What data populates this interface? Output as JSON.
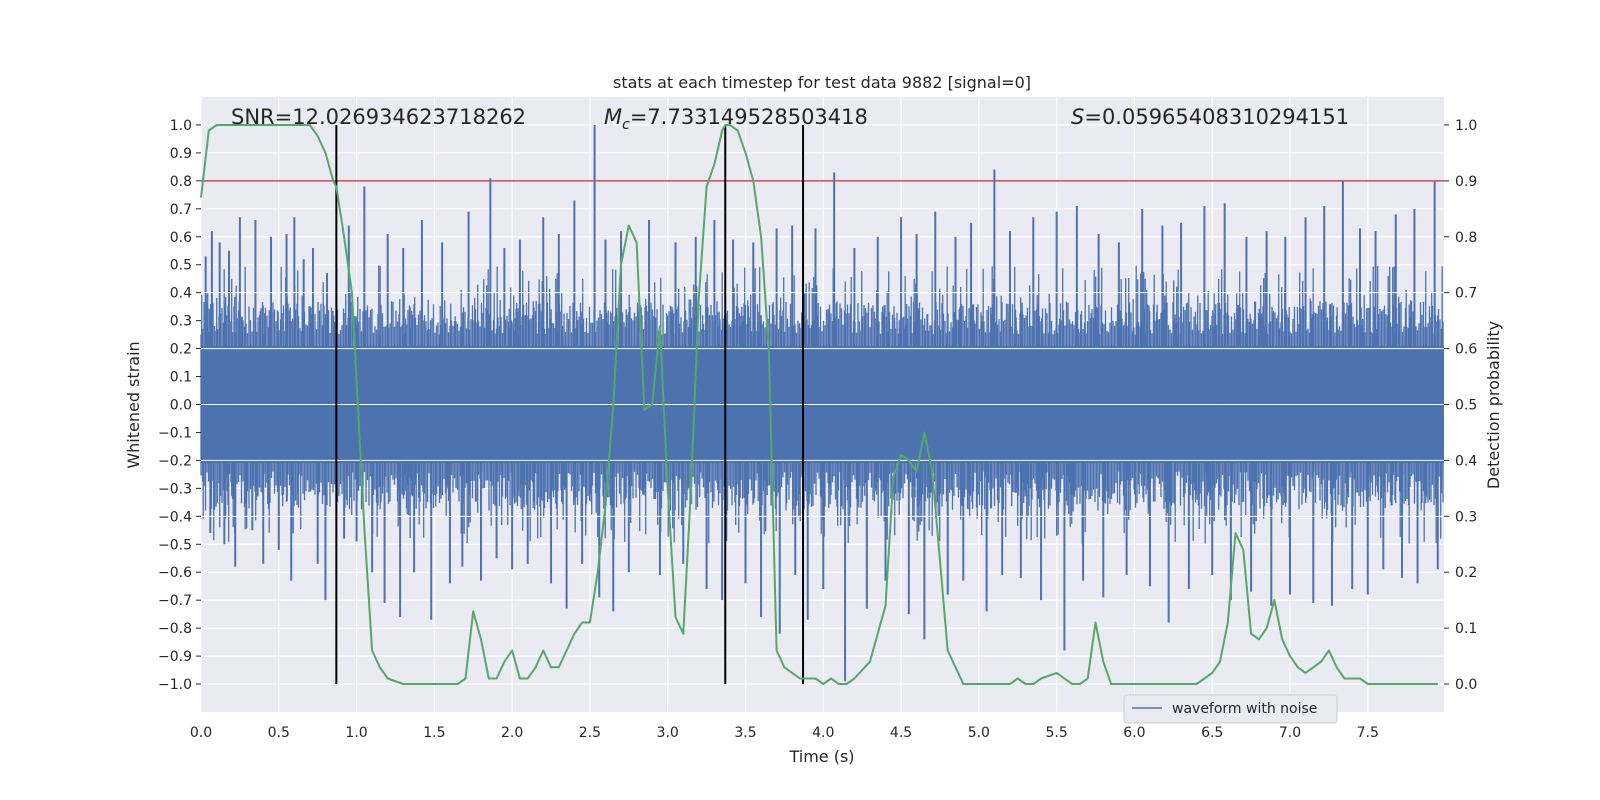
{
  "chart_data": {
    "type": "line",
    "title": "stats at each timestep for test data 9882 [signal=0]",
    "xlabel": "Time (s)",
    "ylabel_left": "Whitened strain",
    "ylabel_right": "Detection probability",
    "xlim": [
      0.0,
      7.99
    ],
    "ylim_left": [
      -1.1,
      1.1
    ],
    "ylim_right": [
      -0.05,
      1.05
    ],
    "grid": true,
    "x_ticks": [
      "0.0",
      "0.5",
      "1.0",
      "1.5",
      "2.0",
      "2.5",
      "3.0",
      "3.5",
      "4.0",
      "4.5",
      "5.0",
      "5.5",
      "6.0",
      "6.5",
      "7.0",
      "7.5"
    ],
    "y_left_ticks": [
      "1.0",
      "0.9",
      "0.8",
      "0.7",
      "0.6",
      "0.5",
      "0.4",
      "0.3",
      "0.2",
      "0.1",
      "0.0",
      "−0.1",
      "−0.2",
      "−0.3",
      "−0.4",
      "−0.5",
      "−0.6",
      "−0.7",
      "−0.8",
      "−0.9",
      "−1.0"
    ],
    "y_right_ticks": [
      "1.0",
      "0.9",
      "0.8",
      "0.7",
      "0.6",
      "0.5",
      "0.4",
      "0.3",
      "0.2",
      "0.1",
      "0.0"
    ],
    "annotations": {
      "snr": "SNR=12.026934623718262",
      "mc_symbol": "M",
      "mc_sub": "c",
      "mc_value": "=7.733149528503418",
      "s_symbol": "S",
      "s_value": "=0.05965408310294151"
    },
    "threshold": {
      "value": 0.9,
      "color": "#c44e52"
    },
    "vertical_lines": [
      0.87,
      3.37,
      3.87
    ],
    "legend": {
      "label": "waveform with noise",
      "position": "lower-right"
    },
    "series": [
      {
        "name": "waveform with noise",
        "axis": "left",
        "color": "#4c72b0",
        "style": "noise-bars",
        "spikes": [
          {
            "x": 0.03,
            "y": 0.53
          },
          {
            "x": 0.07,
            "y": 0.62
          },
          {
            "x": 0.12,
            "y": 0.58
          },
          {
            "x": 0.18,
            "y": 0.55
          },
          {
            "x": 0.25,
            "y": 0.67
          },
          {
            "x": 0.35,
            "y": 0.66
          },
          {
            "x": 0.45,
            "y": 0.6
          },
          {
            "x": 0.55,
            "y": 0.61
          },
          {
            "x": 0.6,
            "y": 0.67
          },
          {
            "x": 0.66,
            "y": 0.52
          },
          {
            "x": 0.72,
            "y": 0.56
          },
          {
            "x": 0.81,
            "y": 0.47
          },
          {
            "x": 0.95,
            "y": 0.64
          },
          {
            "x": 1.05,
            "y": 0.78
          },
          {
            "x": 1.2,
            "y": 0.61
          },
          {
            "x": 1.3,
            "y": 0.56
          },
          {
            "x": 1.42,
            "y": 0.66
          },
          {
            "x": 1.55,
            "y": 0.58
          },
          {
            "x": 1.72,
            "y": 0.69
          },
          {
            "x": 1.86,
            "y": 0.81
          },
          {
            "x": 1.95,
            "y": 0.56
          },
          {
            "x": 2.05,
            "y": 0.59
          },
          {
            "x": 2.2,
            "y": 0.67
          },
          {
            "x": 2.3,
            "y": 0.61
          },
          {
            "x": 2.4,
            "y": 0.73
          },
          {
            "x": 2.53,
            "y": 1.0
          },
          {
            "x": 2.6,
            "y": 0.59
          },
          {
            "x": 2.7,
            "y": 0.62
          },
          {
            "x": 2.88,
            "y": 0.66
          },
          {
            "x": 3.05,
            "y": 0.58
          },
          {
            "x": 3.18,
            "y": 0.6
          },
          {
            "x": 3.3,
            "y": 0.66
          },
          {
            "x": 3.42,
            "y": 0.59
          },
          {
            "x": 3.55,
            "y": 0.58
          },
          {
            "x": 3.7,
            "y": 0.63
          },
          {
            "x": 3.8,
            "y": 0.64
          },
          {
            "x": 3.95,
            "y": 0.63
          },
          {
            "x": 4.07,
            "y": 0.83
          },
          {
            "x": 4.2,
            "y": 0.56
          },
          {
            "x": 4.35,
            "y": 0.6
          },
          {
            "x": 4.5,
            "y": 0.67
          },
          {
            "x": 4.6,
            "y": 0.61
          },
          {
            "x": 4.72,
            "y": 0.69
          },
          {
            "x": 4.85,
            "y": 0.6
          },
          {
            "x": 4.95,
            "y": 0.65
          },
          {
            "x": 5.1,
            "y": 0.84
          },
          {
            "x": 5.2,
            "y": 0.62
          },
          {
            "x": 5.35,
            "y": 0.67
          },
          {
            "x": 5.5,
            "y": 0.69
          },
          {
            "x": 5.63,
            "y": 0.71
          },
          {
            "x": 5.77,
            "y": 0.61
          },
          {
            "x": 5.9,
            "y": 0.58
          },
          {
            "x": 6.05,
            "y": 0.7
          },
          {
            "x": 6.18,
            "y": 0.64
          },
          {
            "x": 6.3,
            "y": 0.65
          },
          {
            "x": 6.45,
            "y": 0.71
          },
          {
            "x": 6.58,
            "y": 0.72
          },
          {
            "x": 6.72,
            "y": 0.6
          },
          {
            "x": 6.85,
            "y": 0.62
          },
          {
            "x": 6.97,
            "y": 0.6
          },
          {
            "x": 7.1,
            "y": 0.67
          },
          {
            "x": 7.22,
            "y": 0.71
          },
          {
            "x": 7.34,
            "y": 0.8
          },
          {
            "x": 7.45,
            "y": 0.63
          },
          {
            "x": 7.55,
            "y": 0.62
          },
          {
            "x": 7.68,
            "y": 0.68
          },
          {
            "x": 7.8,
            "y": 0.7
          },
          {
            "x": 7.93,
            "y": 0.8
          },
          {
            "x": 0.06,
            "y": -0.46
          },
          {
            "x": 0.15,
            "y": -0.5
          },
          {
            "x": 0.22,
            "y": -0.58
          },
          {
            "x": 0.33,
            "y": -0.45
          },
          {
            "x": 0.4,
            "y": -0.57
          },
          {
            "x": 0.5,
            "y": -0.52
          },
          {
            "x": 0.58,
            "y": -0.63
          },
          {
            "x": 0.75,
            "y": -0.57
          },
          {
            "x": 0.8,
            "y": -0.7
          },
          {
            "x": 0.92,
            "y": -0.48
          },
          {
            "x": 1.0,
            "y": -0.49
          },
          {
            "x": 1.1,
            "y": -0.6
          },
          {
            "x": 1.18,
            "y": -0.71
          },
          {
            "x": 1.28,
            "y": -0.76
          },
          {
            "x": 1.37,
            "y": -0.6
          },
          {
            "x": 1.48,
            "y": -0.77
          },
          {
            "x": 1.6,
            "y": -0.64
          },
          {
            "x": 1.68,
            "y": -0.58
          },
          {
            "x": 1.8,
            "y": -0.63
          },
          {
            "x": 1.9,
            "y": -0.55
          },
          {
            "x": 2.0,
            "y": -0.59
          },
          {
            "x": 2.1,
            "y": -0.57
          },
          {
            "x": 2.25,
            "y": -0.64
          },
          {
            "x": 2.35,
            "y": -0.73
          },
          {
            "x": 2.45,
            "y": -0.57
          },
          {
            "x": 2.56,
            "y": -0.69
          },
          {
            "x": 2.65,
            "y": -0.74
          },
          {
            "x": 2.75,
            "y": -0.6
          },
          {
            "x": 2.95,
            "y": -0.61
          },
          {
            "x": 3.1,
            "y": -0.57
          },
          {
            "x": 3.25,
            "y": -0.66
          },
          {
            "x": 3.35,
            "y": -0.7
          },
          {
            "x": 3.5,
            "y": -0.64
          },
          {
            "x": 3.6,
            "y": -0.76
          },
          {
            "x": 3.72,
            "y": -0.82
          },
          {
            "x": 3.82,
            "y": -0.61
          },
          {
            "x": 3.9,
            "y": -0.77
          },
          {
            "x": 4.0,
            "y": -0.66
          },
          {
            "x": 4.14,
            "y": -0.99
          },
          {
            "x": 4.28,
            "y": -0.73
          },
          {
            "x": 4.4,
            "y": -0.63
          },
          {
            "x": 4.55,
            "y": -0.75
          },
          {
            "x": 4.65,
            "y": -0.84
          },
          {
            "x": 4.8,
            "y": -0.68
          },
          {
            "x": 4.9,
            "y": -0.63
          },
          {
            "x": 5.05,
            "y": -0.74
          },
          {
            "x": 5.15,
            "y": -0.61
          },
          {
            "x": 5.27,
            "y": -0.62
          },
          {
            "x": 5.4,
            "y": -0.7
          },
          {
            "x": 5.55,
            "y": -0.88
          },
          {
            "x": 5.67,
            "y": -0.63
          },
          {
            "x": 5.8,
            "y": -0.69
          },
          {
            "x": 5.95,
            "y": -0.61
          },
          {
            "x": 6.1,
            "y": -0.65
          },
          {
            "x": 6.22,
            "y": -0.78
          },
          {
            "x": 6.35,
            "y": -0.66
          },
          {
            "x": 6.5,
            "y": -0.61
          },
          {
            "x": 6.62,
            "y": -0.7
          },
          {
            "x": 6.75,
            "y": -0.67
          },
          {
            "x": 6.88,
            "y": -0.72
          },
          {
            "x": 7.0,
            "y": -0.68
          },
          {
            "x": 7.15,
            "y": -0.71
          },
          {
            "x": 7.27,
            "y": -0.72
          },
          {
            "x": 7.4,
            "y": -0.66
          },
          {
            "x": 7.5,
            "y": -0.68
          },
          {
            "x": 7.6,
            "y": -0.59
          },
          {
            "x": 7.72,
            "y": -0.62
          },
          {
            "x": 7.82,
            "y": -0.64
          },
          {
            "x": 7.95,
            "y": -0.59
          }
        ]
      },
      {
        "name": "detection probability",
        "axis": "right",
        "color": "#55a868",
        "x": [
          0.0,
          0.05,
          0.1,
          0.2,
          0.3,
          0.4,
          0.5,
          0.6,
          0.7,
          0.75,
          0.8,
          0.85,
          0.87,
          0.92,
          0.97,
          1.05,
          1.1,
          1.15,
          1.2,
          1.3,
          1.4,
          1.5,
          1.6,
          1.65,
          1.7,
          1.75,
          1.8,
          1.85,
          1.9,
          1.95,
          2.0,
          2.05,
          2.1,
          2.15,
          2.2,
          2.25,
          2.3,
          2.35,
          2.4,
          2.45,
          2.5,
          2.55,
          2.6,
          2.65,
          2.7,
          2.75,
          2.8,
          2.85,
          2.9,
          2.95,
          3.0,
          3.05,
          3.1,
          3.15,
          3.2,
          3.25,
          3.3,
          3.35,
          3.37,
          3.4,
          3.45,
          3.5,
          3.55,
          3.6,
          3.65,
          3.7,
          3.75,
          3.8,
          3.85,
          3.9,
          3.95,
          4.0,
          4.05,
          4.1,
          4.15,
          4.2,
          4.3,
          4.4,
          4.45,
          4.5,
          4.55,
          4.6,
          4.65,
          4.7,
          4.75,
          4.8,
          4.85,
          4.9,
          4.95,
          5.0,
          5.1,
          5.2,
          5.25,
          5.3,
          5.35,
          5.4,
          5.5,
          5.55,
          5.6,
          5.65,
          5.7,
          5.75,
          5.8,
          5.85,
          5.9,
          5.95,
          6.0,
          6.2,
          6.3,
          6.4,
          6.45,
          6.5,
          6.55,
          6.6,
          6.65,
          6.7,
          6.75,
          6.8,
          6.85,
          6.9,
          6.95,
          7.0,
          7.05,
          7.1,
          7.15,
          7.2,
          7.25,
          7.3,
          7.35,
          7.4,
          7.45,
          7.5,
          7.55,
          7.6,
          7.7,
          7.8,
          7.95
        ],
        "y": [
          0.87,
          0.99,
          1.0,
          1.0,
          1.0,
          1.0,
          1.0,
          1.0,
          1.0,
          0.98,
          0.95,
          0.9,
          0.89,
          0.8,
          0.7,
          0.28,
          0.06,
          0.03,
          0.01,
          0.0,
          0.0,
          0.0,
          0.0,
          0.0,
          0.01,
          0.13,
          0.08,
          0.01,
          0.01,
          0.04,
          0.06,
          0.01,
          0.01,
          0.03,
          0.06,
          0.03,
          0.03,
          0.06,
          0.09,
          0.11,
          0.11,
          0.2,
          0.32,
          0.5,
          0.75,
          0.82,
          0.79,
          0.49,
          0.5,
          0.64,
          0.35,
          0.12,
          0.09,
          0.35,
          0.69,
          0.89,
          0.93,
          0.99,
          1.0,
          1.0,
          0.99,
          0.95,
          0.9,
          0.8,
          0.6,
          0.06,
          0.03,
          0.02,
          0.01,
          0.01,
          0.01,
          0.0,
          0.01,
          0.0,
          0.0,
          0.01,
          0.04,
          0.14,
          0.37,
          0.41,
          0.4,
          0.38,
          0.45,
          0.38,
          0.22,
          0.06,
          0.03,
          0.0,
          0.0,
          0.0,
          0.0,
          0.0,
          0.01,
          0.0,
          0.0,
          0.01,
          0.02,
          0.01,
          0.0,
          0.0,
          0.01,
          0.11,
          0.04,
          0.0,
          0.0,
          0.0,
          0.0,
          0.0,
          0.0,
          0.0,
          0.01,
          0.02,
          0.04,
          0.11,
          0.27,
          0.24,
          0.09,
          0.08,
          0.1,
          0.15,
          0.08,
          0.05,
          0.03,
          0.02,
          0.03,
          0.04,
          0.06,
          0.03,
          0.01,
          0.01,
          0.01,
          0.0,
          0.0,
          0.0,
          0.0,
          0.0,
          0.0
        ]
      }
    ]
  }
}
